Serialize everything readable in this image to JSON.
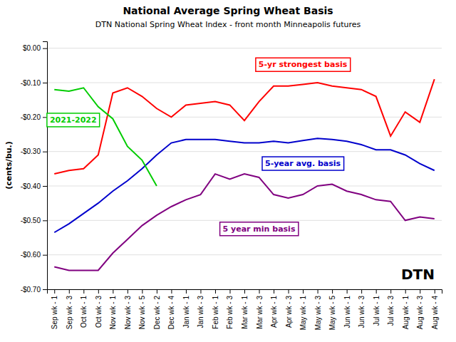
{
  "chart_data": {
    "type": "line",
    "title": "National Average Spring Wheat Basis",
    "subtitle": "DTN National Spring Wheat Index - front month Minneapolis futures",
    "y_label": "(cents/bu.)",
    "annotations": [
      "DTN"
    ],
    "categories": [
      "Sep wk - 1",
      "Sep wk - 3",
      "Oct wk - 1",
      "Oct wk - 3",
      "Nov wk - 1",
      "Nov wk - 3",
      "Nov wk - 5",
      "Dec wk - 2",
      "Dec wk - 4",
      "Jan wk - 1",
      "Jan wk - 3",
      "Feb wk - 1",
      "Feb wk - 3",
      "Mar wk - 1",
      "Mar wk - 3",
      "Apr wk - 1",
      "Apr wk - 3",
      "May wk - 1",
      "May wk - 3",
      "May wk - 5",
      "Jun wk - 1",
      "Jun wk - 3",
      "Jul wk - 1",
      "Jul wk - 3",
      "Aug wk - 1",
      "Aug wk - 3",
      "Aug wk - 4"
    ],
    "series": [
      {
        "name": "5-yr strongest basis",
        "color": "#FF0000",
        "values": [
          -0.365,
          -0.355,
          -0.35,
          -0.31,
          -0.13,
          -0.115,
          -0.14,
          -0.175,
          -0.2,
          -0.165,
          -0.16,
          -0.155,
          -0.165,
          -0.21,
          -0.155,
          -0.11,
          -0.11,
          -0.105,
          -0.1,
          -0.11,
          -0.115,
          -0.12,
          -0.14,
          -0.255,
          -0.185,
          -0.215,
          -0.09
        ]
      },
      {
        "name": "5-year avg. basis",
        "color": "#0000CC",
        "values": [
          -0.535,
          -0.51,
          -0.48,
          -0.45,
          -0.415,
          -0.385,
          -0.35,
          -0.31,
          -0.275,
          -0.265,
          -0.265,
          -0.265,
          -0.27,
          -0.275,
          -0.275,
          -0.27,
          -0.275,
          -0.268,
          -0.262,
          -0.265,
          -0.27,
          -0.28,
          -0.295,
          -0.295,
          -0.31,
          -0.335,
          -0.355
        ]
      },
      {
        "name": "5 year min basis",
        "color": "#800080",
        "values": [
          -0.635,
          -0.645,
          -0.645,
          -0.645,
          -0.595,
          -0.555,
          -0.515,
          -0.485,
          -0.46,
          -0.44,
          -0.425,
          -0.365,
          -0.38,
          -0.365,
          -0.375,
          -0.425,
          -0.435,
          -0.425,
          -0.4,
          -0.395,
          -0.415,
          -0.425,
          -0.44,
          -0.445,
          -0.5,
          -0.49,
          -0.495
        ]
      },
      {
        "name": "2021-2022",
        "color": "#00CC00",
        "values": [
          -0.12,
          -0.125,
          -0.115,
          -0.17,
          -0.205,
          -0.285,
          -0.325,
          -0.4,
          null,
          null,
          null,
          null,
          null,
          null,
          null,
          null,
          null,
          null,
          null,
          null,
          null,
          null,
          null,
          null,
          null,
          null,
          null
        ]
      }
    ],
    "ylim": [
      -0.7,
      0.02
    ],
    "yticks": [
      {
        "value": 0.0,
        "label": "$0.00"
      },
      {
        "value": -0.1,
        "label": "-$0.10"
      },
      {
        "value": -0.2,
        "label": "-$0.20"
      },
      {
        "value": -0.3,
        "label": "-$0.30"
      },
      {
        "value": -0.4,
        "label": "-$0.40"
      },
      {
        "value": -0.5,
        "label": "-$0.50"
      },
      {
        "value": -0.6,
        "label": "-$0.60"
      },
      {
        "value": -0.7,
        "label": "-$0.70"
      }
    ],
    "grid": true
  }
}
